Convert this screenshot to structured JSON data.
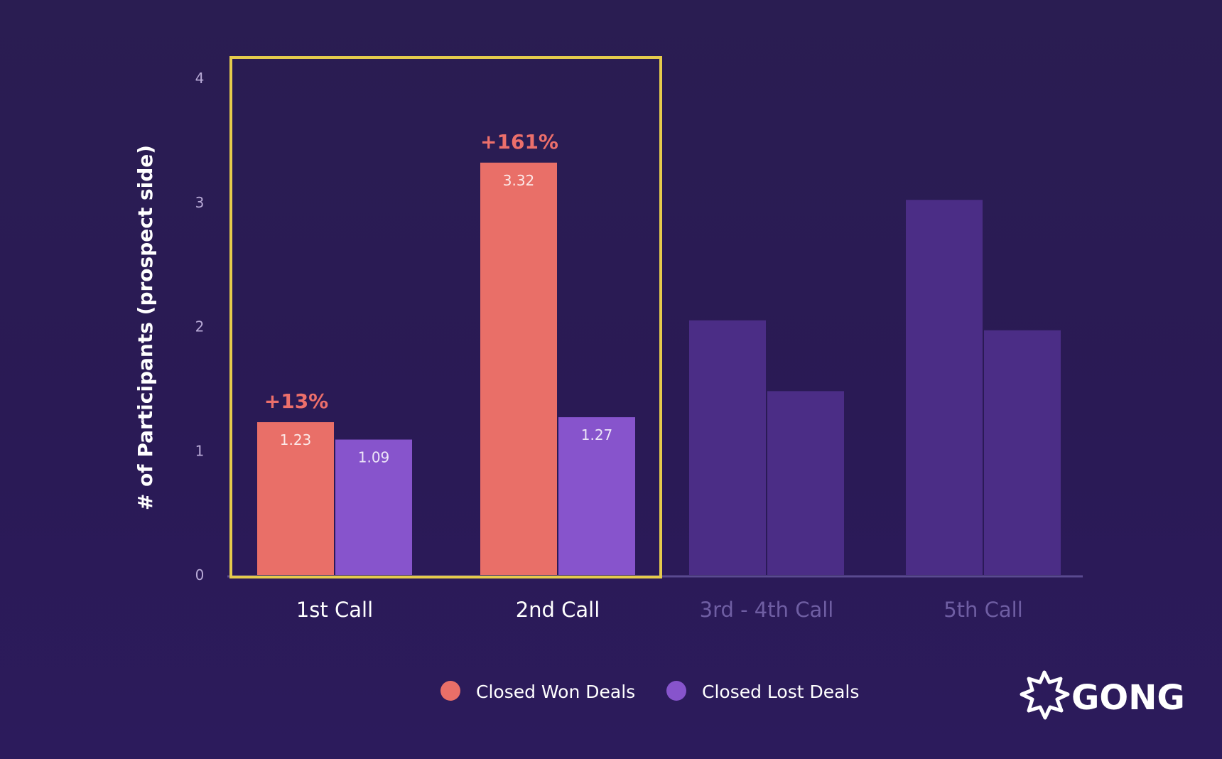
{
  "chart_data": {
    "type": "bar",
    "ylabel": "# of Participants (prospect side)",
    "ylim": [
      0,
      4
    ],
    "yticks": [
      "0",
      "1",
      "2",
      "3",
      "4"
    ],
    "categories": [
      "1st Call",
      "2nd Call",
      "3rd - 4th Call",
      "5th Call"
    ],
    "series": [
      {
        "name": "Closed Won Deals",
        "values": [
          1.23,
          3.32,
          2.05,
          3.02
        ]
      },
      {
        "name": "Closed Lost Deals",
        "values": [
          1.09,
          1.27,
          1.48,
          1.97
        ]
      }
    ],
    "value_labels": [
      [
        "1.23",
        "3.32",
        "",
        ""
      ],
      [
        "1.09",
        "1.27",
        "",
        ""
      ]
    ],
    "annotations": [
      "+13%",
      "+161%",
      "",
      ""
    ],
    "highlighted_categories": [
      "1st Call",
      "2nd Call"
    ],
    "dimmed_categories": [
      "3rd - 4th Call",
      "5th Call"
    ],
    "legend_position": "bottom-center",
    "grid": false
  },
  "colors": {
    "won": "#e96f68",
    "lost": "#8754cc",
    "dimmed_bar": "#4b2d86",
    "highlight_frame": "#e5cb4c",
    "annotation": "#ec6f6b",
    "axis_text": "#b8aad6",
    "dimmed_text": "#6f5ea3"
  },
  "logo": {
    "text": "GONG"
  }
}
